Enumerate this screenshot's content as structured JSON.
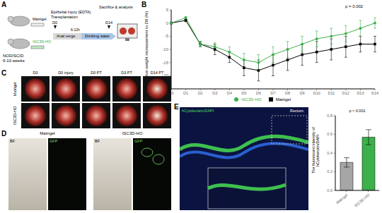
{
  "panels": {
    "A": {
      "letter": "A",
      "mouse": "NOD/SCID",
      "age": "6-10 weeks",
      "groups": [
        "Matrigel",
        "ISC3D-HO"
      ],
      "injury": "Epithelial injury (EDTA)",
      "transplant": "Transplantation",
      "start": "D0",
      "interval": "6-12h",
      "end": "D14",
      "analysis": "Sacrifice & analysis",
      "route": "Anal verge",
      "water": "Drinking water"
    },
    "B": {
      "letter": "B"
    },
    "C": {
      "letter": "C",
      "rows": [
        "Matrigel",
        "ISC3D-HO"
      ],
      "columns": [
        "D0",
        "D0 injury",
        "D0 PT",
        "D3 PT",
        "D14 PT"
      ]
    },
    "D": {
      "letter": "D",
      "groups": [
        "Matrigel",
        "ISC3D-HO"
      ],
      "channels": [
        "BF",
        "GFP"
      ]
    },
    "E": {
      "letter": "E",
      "stain": "hCytokeratin/DAPI",
      "region": "Rectum"
    }
  },
  "chart_data": [
    {
      "type": "line",
      "ylabel": "Relative weight increasement to D0 (%)",
      "categories": [
        "D0",
        "D1",
        "D2",
        "D3",
        "D4",
        "D5",
        "D6",
        "D7",
        "D8",
        "D9",
        "D10",
        "D11",
        "D12",
        "D13",
        "D14"
      ],
      "series": [
        {
          "name": "Matrigel",
          "color": "#000000",
          "marker": "square",
          "values": [
            0,
            1,
            -8,
            -10,
            -13,
            -17,
            -18,
            -16,
            -14,
            -12,
            -11,
            -10,
            -9,
            -8,
            -8
          ],
          "errors": [
            0,
            0.5,
            1,
            2,
            2,
            3,
            4,
            4,
            4,
            4,
            4,
            4,
            4,
            3,
            3
          ]
        },
        {
          "name": "ISC3D-HO",
          "color": "#3cb04a",
          "marker": "circle",
          "values": [
            0,
            2,
            -8,
            -9,
            -11,
            -14,
            -15,
            -12,
            -10,
            -8,
            -6,
            -5,
            -4,
            -2,
            0
          ],
          "errors": [
            0,
            0.5,
            1,
            1.5,
            2,
            2.5,
            3,
            3,
            3,
            3,
            3,
            3,
            3,
            3,
            2
          ]
        }
      ],
      "ylim": [
        -25,
        5
      ],
      "yticks": [
        -25,
        -20,
        -15,
        -10,
        -5,
        0,
        5
      ],
      "annotation": "p = 0.002",
      "legend": "bottom"
    },
    {
      "type": "bar",
      "ylabel": "The fluorescent intensity of hCytokeratin/DAPI",
      "categories": [
        "Matrigel",
        "ISC3D-HO"
      ],
      "values": [
        0.3,
        0.57
      ],
      "errors": [
        0.05,
        0.08
      ],
      "colors": [
        "#a6a6a6",
        "#3cb04a"
      ],
      "ylim": [
        0,
        0.8
      ],
      "yticks": [
        {
          "value": 0,
          "label": "0.0"
        },
        0.2,
        0.4,
        0.6,
        0.8
      ],
      "annotation": "p < 0.001"
    }
  ]
}
